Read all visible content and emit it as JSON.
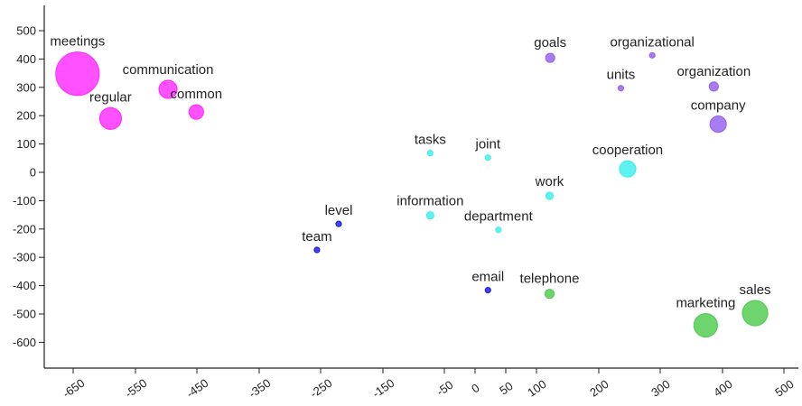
{
  "chart_data": {
    "type": "scatter",
    "title": "",
    "xlabel": "",
    "ylabel": "",
    "xlim": [
      -700,
      520
    ],
    "ylim": [
      -700,
      530
    ],
    "grid": false,
    "legend": "none",
    "colors": {
      "magenta": "#ff33ff",
      "violet": "#9966ee",
      "blue": "#2222dd",
      "cyan": "#44eeee",
      "green": "#55cc55"
    },
    "x_ticks": [
      {
        "value": -650,
        "label": "-650"
      },
      {
        "value": -550,
        "label": "-550"
      },
      {
        "value": -450,
        "label": "-450"
      },
      {
        "value": -350,
        "label": "-350"
      },
      {
        "value": -250,
        "label": "-250"
      },
      {
        "value": -150,
        "label": "-150"
      },
      {
        "value": -50,
        "label": "-50"
      },
      {
        "value": 0,
        "label": "0"
      },
      {
        "value": 50,
        "label": "50"
      },
      {
        "value": 100,
        "label": "100"
      },
      {
        "value": 200,
        "label": "200"
      },
      {
        "value": 300,
        "label": "300"
      },
      {
        "value": 400,
        "label": "400"
      },
      {
        "value": 500,
        "label": "500"
      }
    ],
    "y_ticks": [
      {
        "value": 500,
        "label": "500"
      },
      {
        "value": 400,
        "label": "400"
      },
      {
        "value": 300,
        "label": "300"
      },
      {
        "value": 200,
        "label": "200"
      },
      {
        "value": 100,
        "label": "100"
      },
      {
        "value": 0,
        "label": "0"
      },
      {
        "value": -100,
        "label": "-100"
      },
      {
        "value": -200,
        "label": "-200"
      },
      {
        "value": -300,
        "label": "-300"
      },
      {
        "value": -400,
        "label": "-400"
      },
      {
        "value": -500,
        "label": "-500"
      },
      {
        "value": -600,
        "label": "-600"
      }
    ],
    "points": [
      {
        "label": "meetings",
        "x": -643,
        "y": 348,
        "size": 24,
        "color": "magenta"
      },
      {
        "label": "communication",
        "x": -497,
        "y": 293,
        "size": 10,
        "color": "magenta"
      },
      {
        "label": "regular",
        "x": -590,
        "y": 190,
        "size": 12,
        "color": "magenta"
      },
      {
        "label": "common",
        "x": -451,
        "y": 213,
        "size": 8,
        "color": "magenta"
      },
      {
        "label": "goals",
        "x": 122,
        "y": 404,
        "size": 5,
        "color": "violet"
      },
      {
        "label": "organizational",
        "x": 287,
        "y": 413,
        "size": 3,
        "color": "violet"
      },
      {
        "label": "units",
        "x": 236,
        "y": 297,
        "size": 3,
        "color": "violet"
      },
      {
        "label": "organization",
        "x": 386,
        "y": 303,
        "size": 5,
        "color": "violet"
      },
      {
        "label": "company",
        "x": 393,
        "y": 170,
        "size": 9,
        "color": "violet"
      },
      {
        "label": "tasks",
        "x": -73,
        "y": 68,
        "size": 3,
        "color": "cyan"
      },
      {
        "label": "joint",
        "x": 21,
        "y": 52,
        "size": 3,
        "color": "cyan"
      },
      {
        "label": "cooperation",
        "x": 247,
        "y": 12,
        "size": 9,
        "color": "cyan"
      },
      {
        "label": "work",
        "x": 121,
        "y": -83,
        "size": 4,
        "color": "cyan"
      },
      {
        "label": "information",
        "x": -73,
        "y": -152,
        "size": 4,
        "color": "cyan"
      },
      {
        "label": "department",
        "x": 38,
        "y": -203,
        "size": 3,
        "color": "cyan"
      },
      {
        "label": "level",
        "x": -221,
        "y": -182,
        "size": 3,
        "color": "blue"
      },
      {
        "label": "team",
        "x": -256,
        "y": -274,
        "size": 3,
        "color": "blue"
      },
      {
        "label": "email",
        "x": 21,
        "y": -416,
        "size": 3,
        "color": "blue"
      },
      {
        "label": "telephone",
        "x": 121,
        "y": -429,
        "size": 5,
        "color": "green"
      },
      {
        "label": "marketing",
        "x": 373,
        "y": -540,
        "size": 13,
        "color": "green"
      },
      {
        "label": "sales",
        "x": 453,
        "y": -497,
        "size": 14,
        "color": "green"
      }
    ]
  }
}
